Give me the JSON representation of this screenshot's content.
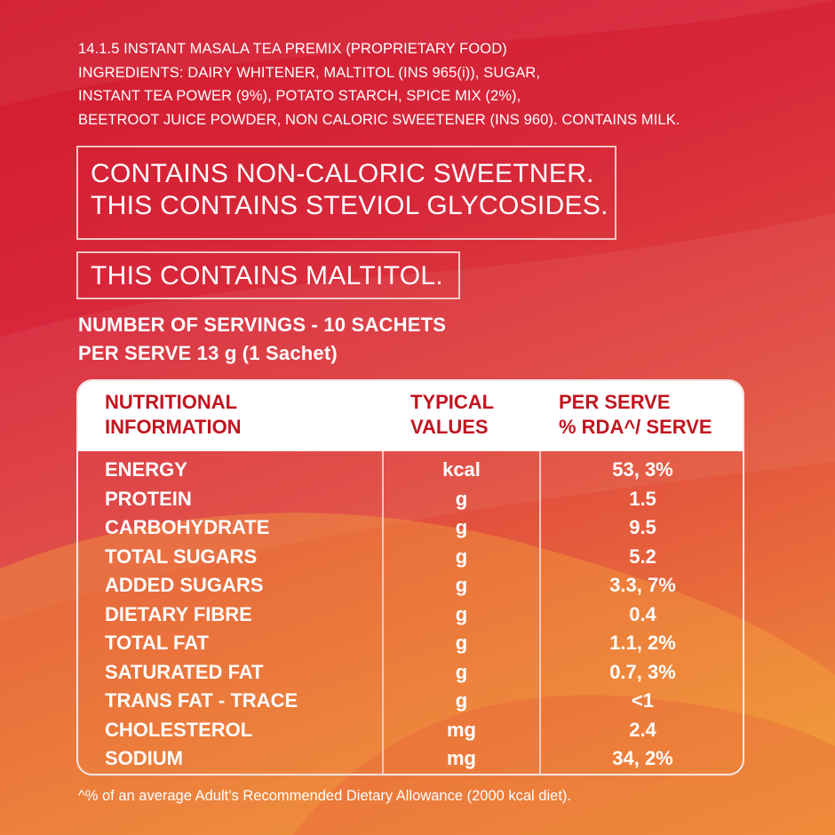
{
  "ingredients_lines": [
    "14.1.5 INSTANT MASALA TEA PREMIX (PROPRIETARY FOOD)",
    "INGREDIENTS: DAIRY WHITENER, MALTITOL (INS 965(i)), SUGAR,",
    "INSTANT TEA POWER (9%), POTATO STARCH, SPICE MIX (2%),",
    "BEETROOT JUICE POWDER, NON CALORIC SWEETENER (INS 960). CONTAINS MILK."
  ],
  "sweetener_notice": {
    "line1": "CONTAINS NON-CALORIC SWEETNER.",
    "line2": "THIS CONTAINS STEVIOL GLYCOSIDES."
  },
  "maltitol_notice": "THIS CONTAINS MALTITOL.",
  "servings": {
    "count": "NUMBER OF SERVINGS - 10 SACHETS",
    "per_serve": "PER SERVE 13 g (1 Sachet)"
  },
  "table": {
    "headers": {
      "col1_line1": "NUTRITIONAL",
      "col1_line2": "INFORMATION",
      "col2_line1": "TYPICAL",
      "col2_line2": "VALUES",
      "col3_line1": "PER SERVE",
      "col3_line2": "% RDA^/ SERVE"
    },
    "rows": [
      {
        "name": "ENERGY",
        "unit": "kcal",
        "value": "53, 3%"
      },
      {
        "name": "PROTEIN",
        "unit": "g",
        "value": "1.5"
      },
      {
        "name": "CARBOHYDRATE",
        "unit": "g",
        "value": "9.5"
      },
      {
        "name": "TOTAL SUGARS",
        "unit": "g",
        "value": "5.2"
      },
      {
        "name": "ADDED SUGARS",
        "unit": "g",
        "value": "3.3, 7%"
      },
      {
        "name": "DIETARY FIBRE",
        "unit": "g",
        "value": "0.4"
      },
      {
        "name": "TOTAL FAT",
        "unit": "g",
        "value": "1.1, 2%"
      },
      {
        "name": "SATURATED FAT",
        "unit": "g",
        "value": "0.7, 3%"
      },
      {
        "name": "TRANS FAT  - TRACE",
        "unit": "g",
        "value": "<1"
      },
      {
        "name": "CHOLESTEROL",
        "unit": "mg",
        "value": "2.4"
      },
      {
        "name": "SODIUM",
        "unit": "mg",
        "value": "34, 2%"
      }
    ]
  },
  "footnote": "^% of an average Adult’s Recommended Dietary Allowance (2000 kcal diet).",
  "colors": {
    "background_top": "#d21a2e",
    "background_bottom": "#ef9a3a",
    "header_text": "#c2141f",
    "header_bg": "#ffffff"
  }
}
